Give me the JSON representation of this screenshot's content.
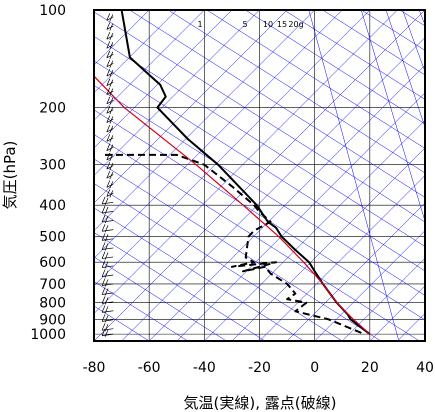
{
  "chart_data": {
    "type": "line",
    "subtype": "skew-T log-P emagram",
    "xlabel": "気温(実線), 露点(破線)",
    "ylabel": "気圧(hPa)",
    "xlim": [
      -80,
      40
    ],
    "ylim": [
      1050,
      100
    ],
    "y_scale": "log",
    "x_ticks": [
      -80,
      -60,
      -40,
      -20,
      0,
      20,
      40
    ],
    "y_ticks": [
      100,
      200,
      300,
      400,
      500,
      600,
      700,
      800,
      900,
      1000
    ],
    "mixing_ratio_labels": [
      "1",
      "5",
      "10",
      "15",
      "20g"
    ],
    "grid": true,
    "series": [
      {
        "key": "temperature",
        "style": "solid",
        "color": "#000000",
        "points": [
          [
            100,
            -70
          ],
          [
            140,
            -67
          ],
          [
            170,
            -56
          ],
          [
            185,
            -54
          ],
          [
            200,
            -57
          ],
          [
            250,
            -46
          ],
          [
            300,
            -35
          ],
          [
            400,
            -21
          ],
          [
            450,
            -17
          ],
          [
            470,
            -14
          ],
          [
            500,
            -12
          ],
          [
            550,
            -7
          ],
          [
            600,
            -2
          ],
          [
            640,
            0
          ],
          [
            700,
            3
          ],
          [
            800,
            8
          ],
          [
            870,
            12
          ],
          [
            900,
            13
          ],
          [
            1000,
            20
          ]
        ]
      },
      {
        "key": "dewpoint",
        "style": "dashed",
        "color": "#000000",
        "points": [
          [
            280,
            -76
          ],
          [
            280,
            -50
          ],
          [
            300,
            -40
          ],
          [
            350,
            -30
          ],
          [
            400,
            -22
          ],
          [
            420,
            -20
          ],
          [
            450,
            -16
          ],
          [
            480,
            -22
          ],
          [
            500,
            -24
          ],
          [
            580,
            -25
          ],
          [
            600,
            -22
          ],
          [
            620,
            -30
          ],
          [
            600,
            -14
          ],
          [
            640,
            -26
          ],
          [
            620,
            -18
          ],
          [
            650,
            -16
          ],
          [
            700,
            -10
          ],
          [
            750,
            -7
          ],
          [
            780,
            -10
          ],
          [
            800,
            -3
          ],
          [
            850,
            -7
          ],
          [
            900,
            5
          ],
          [
            1000,
            18
          ]
        ]
      },
      {
        "key": "parcel",
        "style": "solid",
        "color": "#d4001a",
        "points": [
          [
            160,
            -80
          ],
          [
            200,
            -69
          ],
          [
            300,
            -43
          ],
          [
            400,
            -26
          ],
          [
            500,
            -13
          ],
          [
            600,
            -4
          ],
          [
            700,
            3
          ],
          [
            800,
            8
          ],
          [
            900,
            14
          ],
          [
            1000,
            20
          ]
        ]
      }
    ],
    "wind_barbs_at_x": -73,
    "colors": {
      "frame": "#000000",
      "grid": "#000000",
      "skew_lines": "#0000ff",
      "parcel": "#d4001a"
    }
  }
}
